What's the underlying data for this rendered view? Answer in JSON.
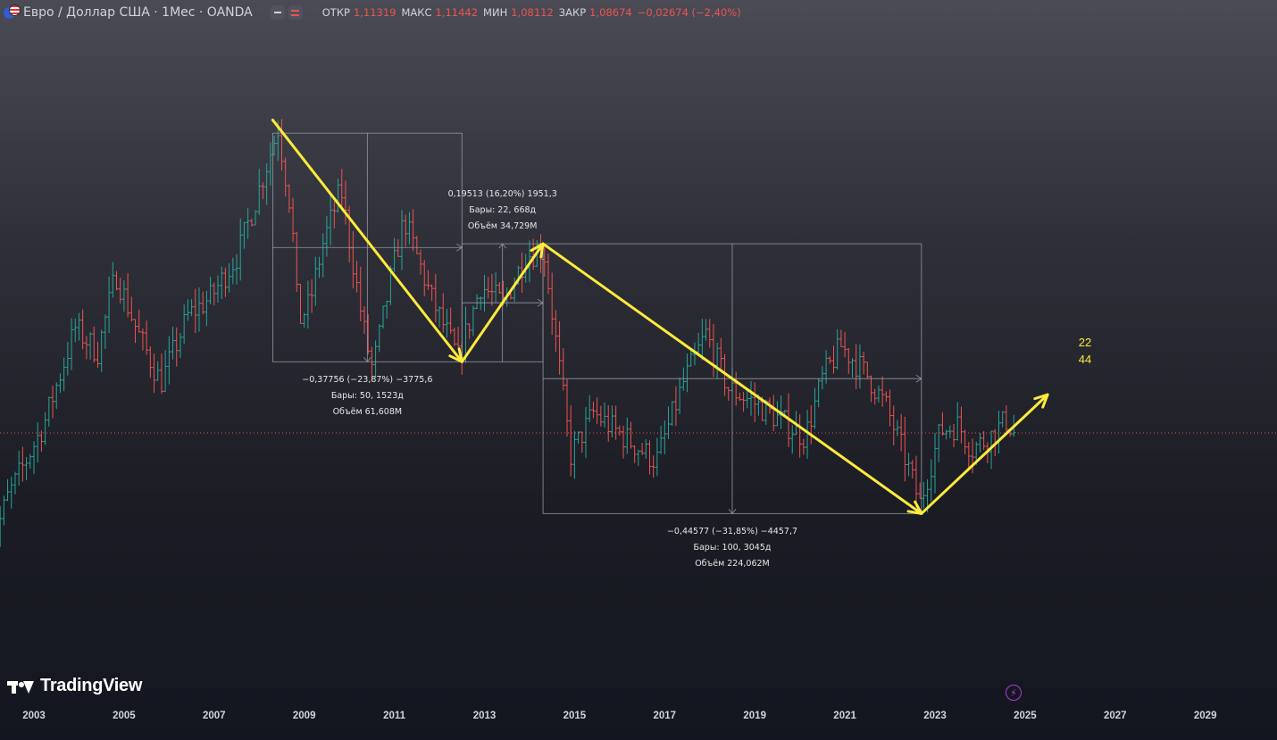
{
  "header": {
    "symbol": "Евро / Доллар США · 1Мес · OANDA",
    "ohlc": [
      {
        "label": "ОТКР",
        "value": "1,11319"
      },
      {
        "label": "МАКС",
        "value": "1,11442"
      },
      {
        "label": "МИН",
        "value": "1,08112"
      },
      {
        "label": "ЗАКР",
        "value": "1,08674"
      },
      {
        "label": "",
        "value": "−0,02674 (−2,40%)"
      }
    ]
  },
  "logo": {
    "text": "TradingView"
  },
  "colors": {
    "up": "#26a69a",
    "down": "#ef5350",
    "arrows": "#ffeb3b",
    "ranges": "#9598a1",
    "price_line": "#ef5350"
  },
  "chart_data": {
    "type": "candlestick",
    "symbol": "EURUSD",
    "timeframe": "1M",
    "x_ticks": [
      "2003",
      "2005",
      "2007",
      "2009",
      "2011",
      "2013",
      "2015",
      "2017",
      "2019",
      "2021",
      "2023",
      "2025",
      "2027",
      "2029"
    ],
    "last_close": 1.08674,
    "price_path": [
      [
        2002.0,
        0.87
      ],
      [
        2002.5,
        0.98
      ],
      [
        2003.3,
        1.1
      ],
      [
        2004.0,
        1.26
      ],
      [
        2004.5,
        1.22
      ],
      [
        2004.9,
        1.35
      ],
      [
        2005.4,
        1.25
      ],
      [
        2005.9,
        1.17
      ],
      [
        2006.5,
        1.28
      ],
      [
        2007.0,
        1.31
      ],
      [
        2007.6,
        1.38
      ],
      [
        2008.0,
        1.47
      ],
      [
        2008.5,
        1.59
      ],
      [
        2008.8,
        1.45
      ],
      [
        2008.95,
        1.27
      ],
      [
        2009.2,
        1.3
      ],
      [
        2009.5,
        1.4
      ],
      [
        2009.9,
        1.49
      ],
      [
        2010.4,
        1.26
      ],
      [
        2010.6,
        1.19
      ],
      [
        2011.0,
        1.34
      ],
      [
        2011.3,
        1.44
      ],
      [
        2011.9,
        1.31
      ],
      [
        2012.5,
        1.21
      ],
      [
        2013.0,
        1.33
      ],
      [
        2013.5,
        1.3
      ],
      [
        2014.0,
        1.38
      ],
      [
        2014.4,
        1.39
      ],
      [
        2015.0,
        1.05
      ],
      [
        2015.5,
        1.12
      ],
      [
        2016.0,
        1.09
      ],
      [
        2016.9,
        1.04
      ],
      [
        2017.5,
        1.17
      ],
      [
        2018.0,
        1.25
      ],
      [
        2018.5,
        1.16
      ],
      [
        2019.0,
        1.14
      ],
      [
        2020.2,
        1.08
      ],
      [
        2020.6,
        1.18
      ],
      [
        2021.0,
        1.23
      ],
      [
        2021.6,
        1.18
      ],
      [
        2022.0,
        1.13
      ],
      [
        2022.4,
        1.05
      ],
      [
        2022.75,
        0.97
      ],
      [
        2023.2,
        1.09
      ],
      [
        2023.6,
        1.1
      ],
      [
        2023.9,
        1.06
      ],
      [
        2024.3,
        1.08
      ],
      [
        2024.7,
        1.11
      ],
      [
        2024.8,
        1.087
      ]
    ],
    "arrows": [
      [
        [
          2008.3,
          1.6038
        ],
        [
          2012.5,
          1.2043
        ]
      ],
      [
        [
          2012.5,
          1.2043
        ],
        [
          2014.3,
          1.3993
        ]
      ],
      [
        [
          2014.3,
          1.3993
        ],
        [
          2022.7,
          0.9535
        ]
      ],
      [
        [
          2022.7,
          0.9535
        ],
        [
          2025.5,
          1.15
        ]
      ]
    ],
    "measurements": [
      {
        "x_range": [
          2008.3,
          2012.5
        ],
        "price_range": [
          1.2043,
          1.5821
        ],
        "label": "−0,37756 (−23,87%) −3775,6",
        "bars": "Бары: 50, 1523д",
        "volume": "Объём 61,608M"
      },
      {
        "x_range": [
          2012.5,
          2014.3
        ],
        "price_range": [
          1.2043,
          1.3993
        ],
        "label": "0,19513 (16,20%) 1951,3",
        "bars": "Бары: 22, 668д",
        "volume": "Объём 34,729M"
      },
      {
        "x_range": [
          2014.3,
          2022.7
        ],
        "price_range": [
          0.9535,
          1.3993
        ],
        "label": "−0,44577 (−31,85%) −4457,7",
        "bars": "Бары: 100, 3045д",
        "volume": "Объём 224,062M"
      }
    ],
    "annotation": [
      "22",
      "44"
    ]
  }
}
